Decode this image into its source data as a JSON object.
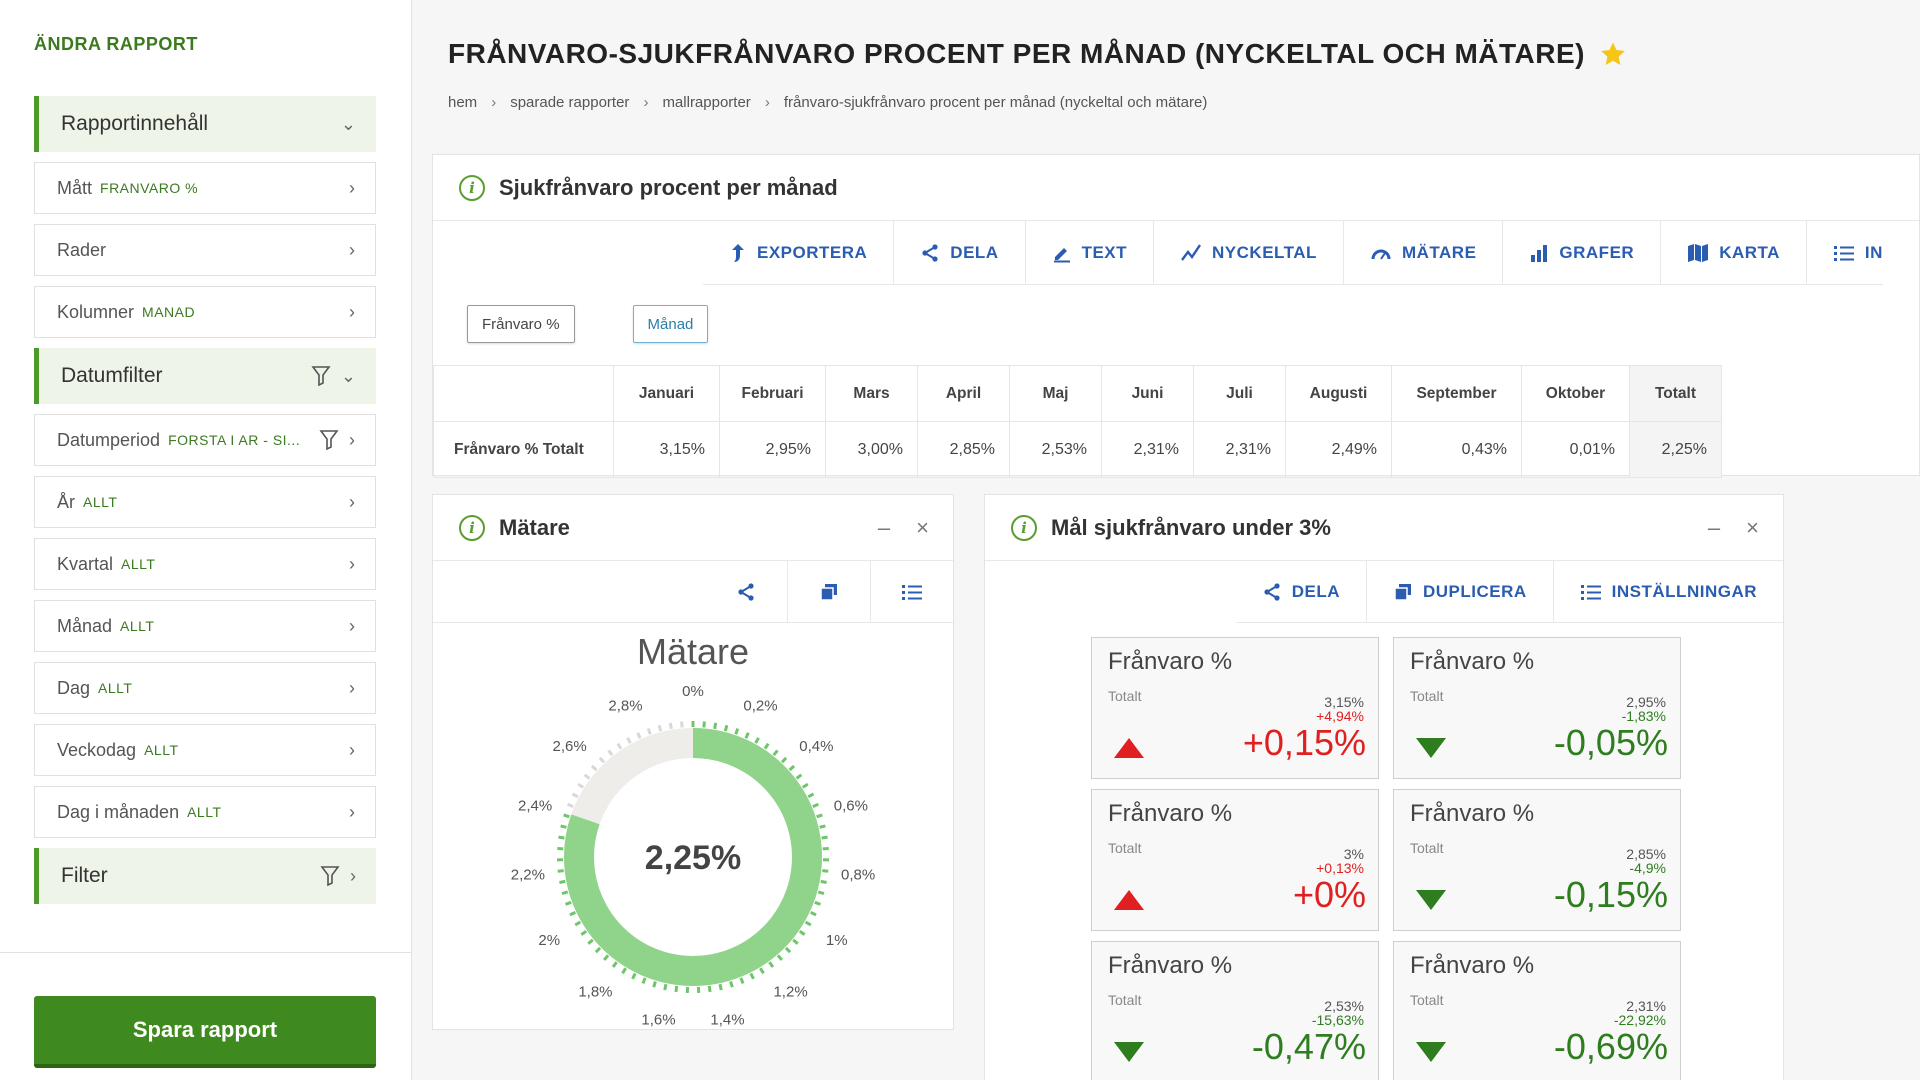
{
  "sidebar": {
    "title": "ÄNDRA RAPPORT",
    "items": [
      {
        "label": "Rapportinnehåll",
        "sub": ""
      },
      {
        "label": "Mått",
        "sub": "FRANVARO %"
      },
      {
        "label": "Rader",
        "sub": ""
      },
      {
        "label": "Kolumner",
        "sub": "MANAD"
      },
      {
        "label": "Datumfilter",
        "sub": ""
      },
      {
        "label": "Datumperiod",
        "sub": "FORSTA I AR - SI..."
      },
      {
        "label": "År",
        "sub": "ALLT"
      },
      {
        "label": "Kvartal",
        "sub": "ALLT"
      },
      {
        "label": "Månad",
        "sub": "ALLT"
      },
      {
        "label": "Dag",
        "sub": "ALLT"
      },
      {
        "label": "Veckodag",
        "sub": "ALLT"
      },
      {
        "label": "Dag i månaden",
        "sub": "ALLT"
      },
      {
        "label": "Filter",
        "sub": ""
      }
    ],
    "save_label": "Spara rapport"
  },
  "header": {
    "title": "FRÅNVARO-SJUKFRÅNVARO PROCENT PER MÅNAD (NYCKELTAL OCH MÄTARE)",
    "breadcrumb": [
      "hem",
      "sparade rapporter",
      "mallrapporter",
      "frånvaro-sjukfrånvaro procent per månad (nyckeltal och mätare)"
    ]
  },
  "main_card": {
    "title": "Sjukfrånvaro procent per månad",
    "toolbar": [
      "EXPORTERA",
      "DELA",
      "TEXT",
      "NYCKELTAL",
      "MÄTARE",
      "GRAFER",
      "KARTA",
      "IN"
    ],
    "chips": [
      "Frånvaro %",
      "Månad"
    ],
    "table": {
      "columns": [
        "Januari",
        "Februari",
        "Mars",
        "April",
        "Maj",
        "Juni",
        "Juli",
        "Augusti",
        "September",
        "Oktober",
        "Totalt"
      ],
      "row_label": "Frånvaro % Totalt",
      "values": [
        "3,15%",
        "2,95%",
        "3,00%",
        "2,85%",
        "2,53%",
        "2,31%",
        "2,31%",
        "2,49%",
        "0,43%",
        "0,01%",
        "2,25%"
      ]
    }
  },
  "gauge_card": {
    "title": "Mätare",
    "gauge_title": "Mätare",
    "center_value": "2,25%",
    "fraction": 0.8036,
    "tick_labels": [
      "0%",
      "0,2%",
      "0,4%",
      "0,6%",
      "0,8%",
      "1%",
      "1,2%",
      "1,4%",
      "1,6%",
      "1,8%",
      "2%",
      "2,2%",
      "2,4%",
      "2,6%",
      "2,8%"
    ],
    "colors": {
      "fill": "#8fd48a",
      "track": "#eeede9"
    }
  },
  "goal_card": {
    "title": "Mål sjukfrånvaro under 3%",
    "toolbar": [
      "DELA",
      "DUPLICERA",
      "INSTÄLLNINGAR"
    ],
    "kpis": [
      {
        "title": "Frånvaro %",
        "sub": "Totalt",
        "v1": "3,15%",
        "v2": "+4,94%",
        "big": "+0,15%",
        "trend": "up"
      },
      {
        "title": "Frånvaro %",
        "sub": "Totalt",
        "v1": "2,95%",
        "v2": "-1,83%",
        "big": "-0,05%",
        "trend": "down"
      },
      {
        "title": "Frånvaro %",
        "sub": "Totalt",
        "v1": "3%",
        "v2": "+0,13%",
        "big": "+0%",
        "trend": "up"
      },
      {
        "title": "Frånvaro %",
        "sub": "Totalt",
        "v1": "2,85%",
        "v2": "-4,9%",
        "big": "-0,15%",
        "trend": "down"
      },
      {
        "title": "Frånvaro %",
        "sub": "Totalt",
        "v1": "2,53%",
        "v2": "-15,63%",
        "big": "-0,47%",
        "trend": "down"
      },
      {
        "title": "Frånvaro %",
        "sub": "Totalt",
        "v1": "2,31%",
        "v2": "-22,92%",
        "big": "-0,69%",
        "trend": "down"
      }
    ]
  }
}
